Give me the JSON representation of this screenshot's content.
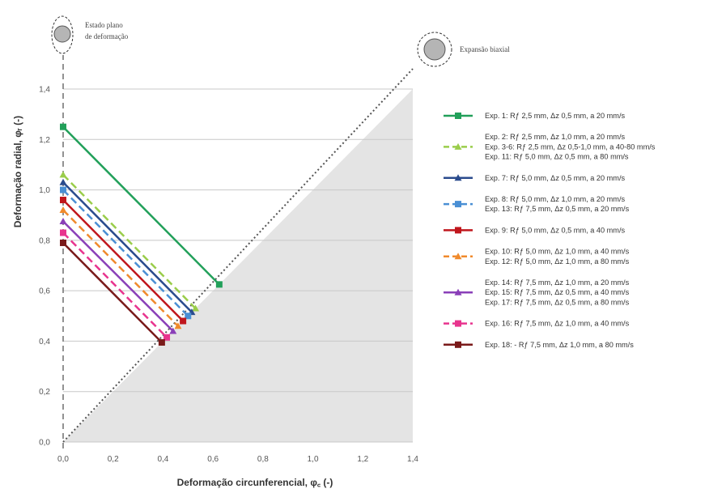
{
  "chart_data": {
    "type": "line",
    "xlabel": "Deformação circunferencial, φ꜀ (-)",
    "ylabel": "Deformação radial, φᵣ (-)",
    "xlim": [
      0,
      1.4
    ],
    "ylim": [
      0,
      1.4
    ],
    "x_ticks": [
      "0,0",
      "0,2",
      "0,4",
      "0,6",
      "0,8",
      "1,0",
      "1,2",
      "1,4"
    ],
    "y_ticks": [
      "0,0",
      "0,2",
      "0,4",
      "0,6",
      "0,8",
      "1,0",
      "1,2",
      "1,4"
    ],
    "grid": "horizontal",
    "legend_position": "right",
    "annotations": {
      "plane_strain": [
        "Estado plano",
        "de deformação"
      ],
      "biaxial": "Expansão biaxial"
    },
    "reference_lines": [
      {
        "name": "plane-strain",
        "style": "dashed",
        "x": [
          0,
          0
        ],
        "y": [
          0,
          1.4
        ]
      },
      {
        "name": "biaxial",
        "style": "dotted",
        "x": [
          0,
          1.4
        ],
        "y": [
          0,
          1.4
        ]
      }
    ],
    "series": [
      {
        "legend": [
          "Exp. 1:     Rƒ 2,5 mm, Δz 0,5 mm, a 20 mm/s"
        ],
        "color": "#22a05a",
        "marker": "square",
        "dash": false,
        "x": [
          0,
          0.625
        ],
        "y": [
          1.25,
          0.625
        ]
      },
      {
        "legend": [
          "Exp. 2:      Rƒ 2,5 mm, Δz 1,0 mm, a 20 mm/s",
          "Exp. 3-6: Rƒ 2,5 mm, Δz 0,5-1,0 mm, a 40-80 mm/s",
          "Exp. 11:  Rƒ 5,0 mm, Δz 0,5 mm, a 80 mm/s"
        ],
        "color": "#9acd4b",
        "marker": "triangle",
        "dash": true,
        "x": [
          0,
          0.53
        ],
        "y": [
          1.06,
          0.53
        ]
      },
      {
        "legend": [
          "Exp. 7:      Rƒ 5,0 mm, Δz 0,5 mm, a 20 mm/s"
        ],
        "color": "#2a4b8d",
        "marker": "triangle",
        "dash": false,
        "x": [
          0,
          0.515
        ],
        "y": [
          1.03,
          0.515
        ]
      },
      {
        "legend": [
          "Exp. 8:      Rƒ 5,0 mm, Δz 1,0 mm, a 20 mm/s",
          "Exp. 13:  Rƒ 7,5 mm, Δz 0,5 mm, a 20 mm/s"
        ],
        "color": "#4a8fd4",
        "marker": "square",
        "dash": true,
        "x": [
          0,
          0.5
        ],
        "y": [
          1.0,
          0.5
        ]
      },
      {
        "legend": [
          "Exp. 9:      Rƒ 5,0 mm, Δz 0,5 mm, a 40 mm/s"
        ],
        "color": "#c0161c",
        "marker": "square",
        "dash": false,
        "x": [
          0,
          0.48
        ],
        "y": [
          0.96,
          0.48
        ]
      },
      {
        "legend": [
          "Exp. 10:   Rƒ 5,0 mm, Δz 1,0 mm, a 40 mm/s",
          "Exp. 12:   Rƒ 5,0 mm, Δz 1,0 mm, a 80 mm/s"
        ],
        "color": "#f08a2c",
        "marker": "triangle",
        "dash": true,
        "x": [
          0,
          0.46
        ],
        "y": [
          0.92,
          0.46
        ]
      },
      {
        "legend": [
          "Exp. 14:   Rƒ 7,5 mm, Δz 1,0 mm, a 20 mm/s",
          "Exp. 15:   Rƒ 7,5 mm, Δz 0,5 mm, a 40 mm/s",
          "Exp. 17:   Rƒ 7,5 mm, Δz 0,5 mm, a 80 mm/s"
        ],
        "color": "#8a3fb8",
        "marker": "triangle",
        "dash": false,
        "x": [
          0,
          0.44
        ],
        "y": [
          0.875,
          0.44
        ]
      },
      {
        "legend": [
          "Exp. 16:   Rƒ 7,5 mm, Δz 1,0 mm, a 40 mm/s"
        ],
        "color": "#e8348e",
        "marker": "square",
        "dash": true,
        "x": [
          0,
          0.415
        ],
        "y": [
          0.83,
          0.415
        ]
      },
      {
        "legend": [
          "Exp. 18: -  Rƒ 7,5 mm, Δz 1,0 mm, a 80 mm/s"
        ],
        "color": "#7a1a1a",
        "marker": "square",
        "dash": false,
        "x": [
          0,
          0.395
        ],
        "y": [
          0.79,
          0.395
        ]
      }
    ]
  }
}
